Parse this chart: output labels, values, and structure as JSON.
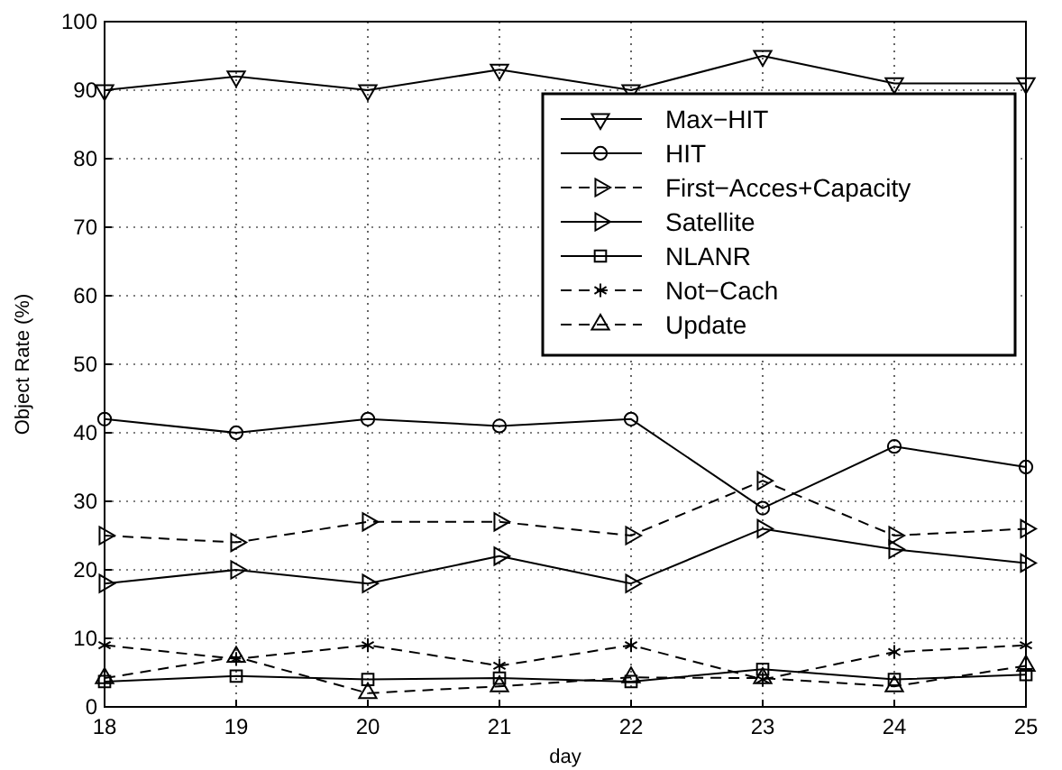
{
  "chart_data": {
    "type": "line",
    "xlabel": "day",
    "ylabel": "Object Rate (%)",
    "x": [
      18,
      19,
      20,
      21,
      22,
      23,
      24,
      25
    ],
    "xlim": [
      18,
      25
    ],
    "xticks": [
      18,
      19,
      20,
      21,
      22,
      23,
      24,
      25
    ],
    "ylim": [
      0,
      100
    ],
    "yticks": [
      0,
      10,
      20,
      30,
      40,
      50,
      60,
      70,
      80,
      90,
      100
    ],
    "grid": true,
    "legend": "top right",
    "series": [
      {
        "name": "Max−HIT",
        "color": "#000000",
        "marker": "triangle-down",
        "line_style": "solid",
        "values": [
          90,
          92,
          90,
          93,
          90,
          95,
          91,
          91
        ]
      },
      {
        "name": "HIT",
        "color": "#000000",
        "marker": "circle",
        "line_style": "solid",
        "values": [
          42,
          40,
          42,
          41,
          42,
          29,
          38,
          35
        ]
      },
      {
        "name": "First−Acces+Capacity",
        "color": "#000000",
        "marker": "triangle-right",
        "line_style": "dashed",
        "values": [
          25,
          24,
          27,
          27,
          25,
          33,
          25,
          26
        ]
      },
      {
        "name": "Satellite",
        "color": "#000000",
        "marker": "triangle-right",
        "line_style": "solid",
        "values": [
          18,
          20,
          18,
          22,
          18,
          26,
          23,
          21
        ]
      },
      {
        "name": "NLANR",
        "color": "#000000",
        "marker": "square",
        "line_style": "solid",
        "values": [
          3.7,
          4.5,
          4,
          4.2,
          3.7,
          5.5,
          4,
          4.7
        ]
      },
      {
        "name": "Not−Cach",
        "color": "#000000",
        "marker": "cross",
        "line_style": "dashed",
        "values": [
          9,
          7,
          9,
          6,
          9,
          4,
          8,
          9
        ]
      },
      {
        "name": "Update",
        "color": "#000000",
        "marker": "triangle",
        "line_style": "dashed",
        "values": [
          4.2,
          7.3,
          2,
          3,
          4.3,
          4.2,
          3,
          6
        ]
      }
    ]
  }
}
